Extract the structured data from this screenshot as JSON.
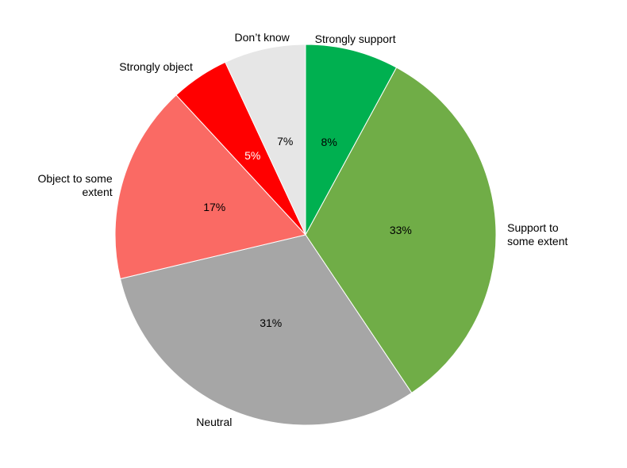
{
  "chart_data": {
    "type": "pie",
    "categories": [
      "Strongly support",
      "Support to some extent",
      "Neutral",
      "Object to some extent",
      "Strongly object",
      "Don’t know"
    ],
    "values": [
      8,
      33,
      31,
      17,
      5,
      7
    ],
    "value_labels": [
      "8%",
      "33%",
      "31%",
      "17%",
      "5%",
      "7%"
    ],
    "colors": [
      "#00b050",
      "#70ad47",
      "#a6a6a6",
      "#fa6a64",
      "#ff0000",
      "#e6e6e6"
    ],
    "value_label_colors": [
      "#000000",
      "#000000",
      "#000000",
      "#000000",
      "#ffffff",
      "#000000"
    ],
    "start_angle": 0,
    "direction": "clockwise"
  }
}
